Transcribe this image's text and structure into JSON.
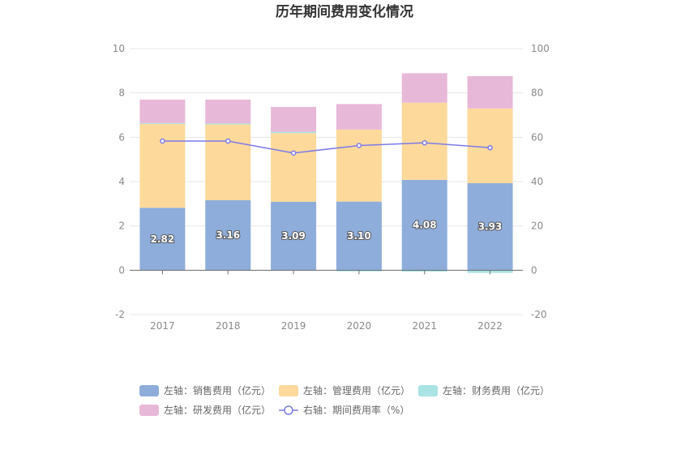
{
  "chart_data": {
    "type": "bar",
    "title": "历年期间费用变化情况",
    "categories": [
      "2017",
      "2018",
      "2019",
      "2020",
      "2021",
      "2022"
    ],
    "stacked": true,
    "left_axis": {
      "ylim": [
        -2,
        10
      ],
      "ticks": [
        "-2",
        "0",
        "2",
        "4",
        "6",
        "8",
        "10"
      ]
    },
    "right_axis": {
      "ylim": [
        -20,
        100
      ],
      "ticks": [
        "-20",
        "0",
        "20",
        "40",
        "60",
        "80",
        "100"
      ]
    },
    "grid": true,
    "legend_position": "bottom",
    "series": [
      {
        "name": "左轴：销售费用（亿元）",
        "axis": "left",
        "type": "bar",
        "color": "#8eaddb",
        "values": [
          2.82,
          3.16,
          3.09,
          3.1,
          4.08,
          3.93
        ],
        "labels": [
          "2.82",
          "3.16",
          "3.09",
          "3.10",
          "4.08",
          "3.93"
        ]
      },
      {
        "name": "左轴：管理费用（亿元）",
        "axis": "left",
        "type": "bar",
        "color": "#fdd99b",
        "values": [
          3.78,
          3.42,
          3.1,
          3.25,
          3.48,
          3.37
        ]
      },
      {
        "name": "左轴：财务费用（亿元）",
        "axis": "left",
        "type": "bar",
        "color": "#a9e3e3",
        "values": [
          0.04,
          0.05,
          0.06,
          -0.05,
          -0.06,
          -0.12
        ]
      },
      {
        "name": "左轴：研发费用（亿元）",
        "axis": "left",
        "type": "bar",
        "color": "#e8b8d8",
        "values": [
          1.06,
          1.07,
          1.12,
          1.15,
          1.33,
          1.46
        ]
      },
      {
        "name": "右轴：期间费用率（%）",
        "axis": "right",
        "type": "line",
        "color": "#7b7be8",
        "values": [
          58.3,
          58.3,
          52.9,
          56.3,
          57.5,
          55.3
        ]
      }
    ]
  }
}
